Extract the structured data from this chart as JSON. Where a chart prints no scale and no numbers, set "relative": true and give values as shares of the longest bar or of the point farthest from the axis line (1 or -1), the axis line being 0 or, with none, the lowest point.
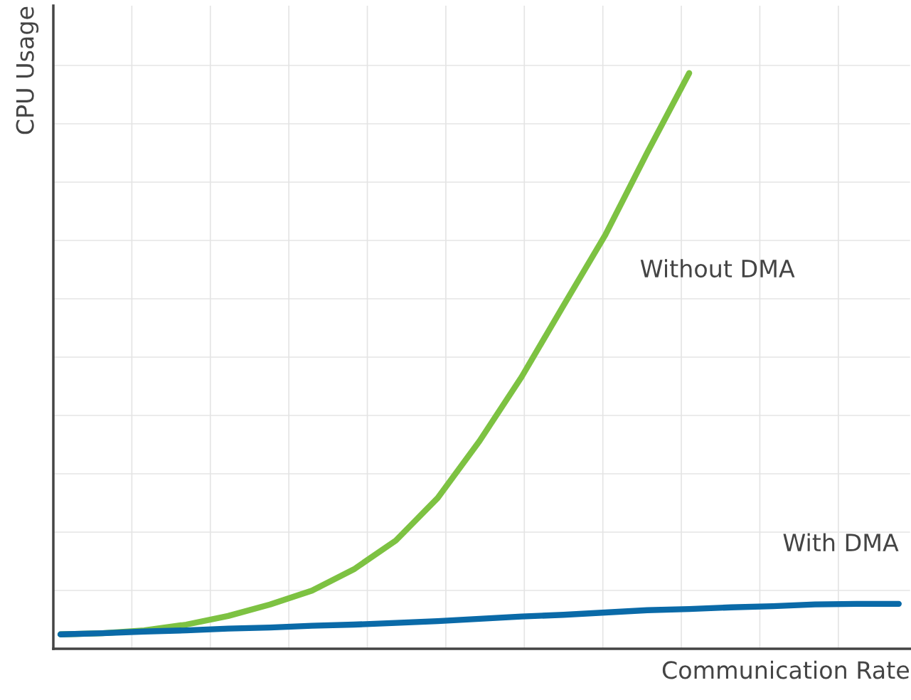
{
  "chart_data": {
    "type": "line",
    "relative": true,
    "xlabel": "Communication Rate",
    "ylabel": "CPU Usage",
    "categories": [
      null,
      null,
      null,
      null,
      null,
      null,
      null,
      null,
      null,
      null,
      null,
      null,
      null,
      null,
      null,
      null,
      null,
      null,
      null,
      null,
      null
    ],
    "series": [
      {
        "name": "Without DMA",
        "color": "#7dc242",
        "values": [
          0.025,
          0.027,
          0.032,
          0.042,
          0.057,
          0.077,
          0.101,
          0.138,
          0.188,
          0.262,
          0.361,
          0.472,
          0.596,
          0.719,
          0.862,
          1.0,
          null,
          null,
          null,
          null,
          null
        ]
      },
      {
        "name": "With DMA",
        "color": "#0a6aa8",
        "values": [
          0.025,
          0.027,
          0.03,
          0.032,
          0.035,
          0.037,
          0.04,
          0.042,
          0.045,
          0.048,
          0.052,
          0.056,
          0.059,
          0.063,
          0.067,
          0.069,
          0.072,
          0.074,
          0.077,
          0.078,
          0.078
        ]
      }
    ],
    "grid": true,
    "marker": "none",
    "line_style": "solid"
  }
}
